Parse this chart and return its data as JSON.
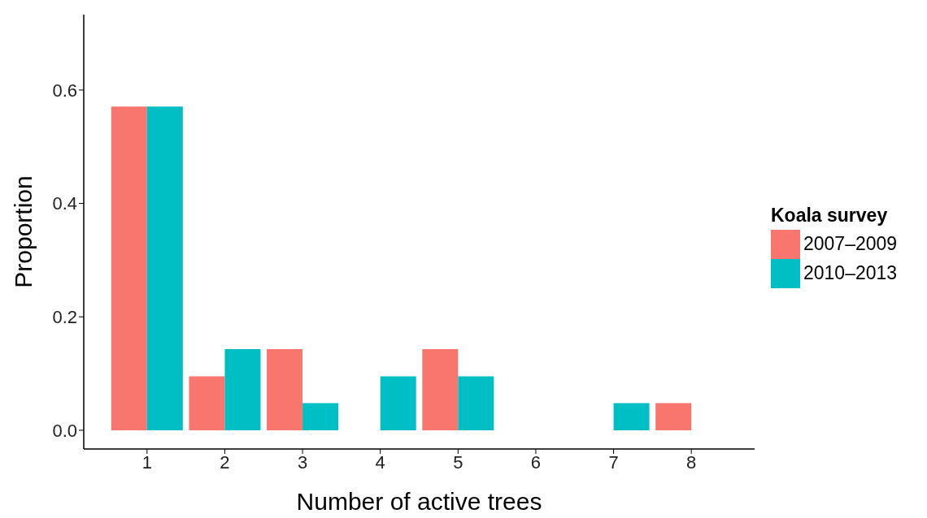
{
  "chart_data": {
    "type": "bar",
    "xlabel": "Number of active trees",
    "ylabel": "Proportion",
    "legend_title": "Koala survey",
    "legend": "right",
    "grid": false,
    "categories": [
      "1",
      "2",
      "3",
      "4",
      "5",
      "6",
      "7",
      "8"
    ],
    "ylim": [
      -0.033,
      0.733
    ],
    "yticks": [
      {
        "value": 0,
        "label": "0.0"
      },
      {
        "value": 0.2,
        "label": "0.2"
      },
      {
        "value": 0.4,
        "label": "0.4"
      },
      {
        "value": 0.6,
        "label": "0.6"
      }
    ],
    "series": [
      {
        "name": "2007–2009",
        "color": "#f8766d",
        "values": [
          0.571,
          0.095,
          0.143,
          null,
          0.143,
          null,
          null,
          0.048
        ]
      },
      {
        "name": "2010–2013",
        "color": "#00bfc4",
        "values": [
          0.571,
          0.143,
          0.048,
          0.095,
          0.095,
          null,
          0.048,
          null
        ]
      }
    ]
  }
}
